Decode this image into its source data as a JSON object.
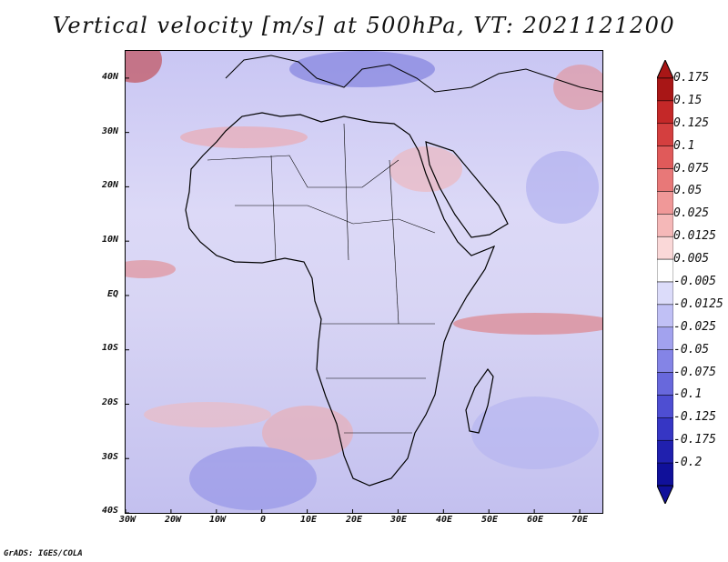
{
  "title": "Vertical velocity [m/s] at 500hPa, VT: 2021121200",
  "credit": "GrADS: IGES/COLA",
  "map": {
    "lat_labels": [
      "40N",
      "30N",
      "20N",
      "10N",
      "EQ",
      "10S",
      "20S",
      "30S",
      "40S"
    ],
    "lat_values": [
      40,
      30,
      20,
      10,
      0,
      -10,
      -20,
      -30,
      -40
    ],
    "lon_labels": [
      "30W",
      "20W",
      "10W",
      "0",
      "10E",
      "20E",
      "30E",
      "40E",
      "50E",
      "60E",
      "70E"
    ],
    "lon_values": [
      -30,
      -20,
      -10,
      0,
      10,
      20,
      30,
      40,
      50,
      60,
      70
    ],
    "lon_range": [
      -30,
      75
    ],
    "lat_range": [
      -40,
      45
    ]
  },
  "colorbar": {
    "labels": [
      "0.175",
      "0.15",
      "0.125",
      "0.1",
      "0.075",
      "0.05",
      "0.025",
      "0.0125",
      "0.005",
      "-0.005",
      "-0.0125",
      "-0.025",
      "-0.05",
      "-0.075",
      "-0.1",
      "-0.125",
      "-0.175",
      "-0.2"
    ],
    "colors": [
      "#a81616",
      "#c42828",
      "#d43f3f",
      "#e05a5a",
      "#e87878",
      "#f09898",
      "#f5b8b8",
      "#fad8d8",
      "#ffffff",
      "#dcdcfa",
      "#c0c0f5",
      "#a2a2ee",
      "#8484e6",
      "#6868dc",
      "#4e4ed2",
      "#3636c4",
      "#2020ae",
      "#10109a"
    ]
  }
}
